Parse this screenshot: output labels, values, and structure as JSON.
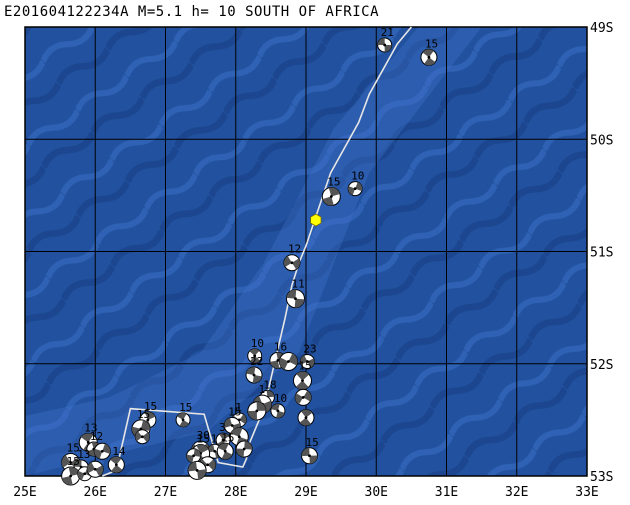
{
  "title": "E201604122234A M=5.1 h= 10 SOUTH OF AFRICA",
  "map": {
    "lon_range": [
      25,
      33
    ],
    "lat_range": [
      -53,
      -49
    ],
    "x_tick_labels": [
      "25E",
      "26E",
      "27E",
      "28E",
      "29E",
      "30E",
      "31E",
      "32E",
      "33E"
    ],
    "y_tick_labels": [
      "49S",
      "50S",
      "51S",
      "52S",
      "53S"
    ],
    "colors": {
      "ocean_dark": "#1f4fa8",
      "ocean_light": "#3f74cc",
      "grid": "#000000",
      "plate_boundary": "#e6e6e6",
      "epicenter": "#ffff00",
      "beachball_dark": "#555555"
    }
  },
  "epicenter": {
    "lon": 29.14,
    "lat": -50.72
  },
  "plate_boundary": [
    [
      30.5,
      -49.0
    ],
    [
      30.3,
      -49.15
    ],
    [
      29.9,
      -49.6
    ],
    [
      29.75,
      -49.85
    ],
    [
      29.35,
      -50.3
    ],
    [
      29.0,
      -50.95
    ],
    [
      28.9,
      -51.1
    ],
    [
      28.8,
      -51.3
    ],
    [
      28.7,
      -51.6
    ],
    [
      28.55,
      -52.0
    ],
    [
      28.4,
      -52.4
    ],
    [
      28.2,
      -52.7
    ],
    [
      28.15,
      -52.85
    ],
    [
      28.1,
      -52.92
    ],
    [
      27.75,
      -52.88
    ],
    [
      27.55,
      -52.45
    ],
    [
      26.5,
      -52.4
    ],
    [
      26.3,
      -52.95
    ],
    [
      26.1,
      -53.0
    ]
  ],
  "events": [
    {
      "lon": 30.12,
      "lat": -49.16,
      "depth": "21"
    },
    {
      "lon": 30.75,
      "lat": -49.27,
      "depth": "15"
    },
    {
      "lon": 29.36,
      "lat": -50.51,
      "depth": "15"
    },
    {
      "lon": 29.7,
      "lat": -50.44,
      "depth": "10"
    },
    {
      "lon": 28.8,
      "lat": -51.1,
      "depth": "12"
    },
    {
      "lon": 28.85,
      "lat": -51.42,
      "depth": "11"
    },
    {
      "lon": 28.27,
      "lat": -51.93,
      "depth": "10"
    },
    {
      "lon": 28.6,
      "lat": -51.97,
      "depth": "16"
    },
    {
      "lon": 28.75,
      "lat": -51.98,
      "depth": ""
    },
    {
      "lon": 29.02,
      "lat": -51.98,
      "depth": "23"
    },
    {
      "lon": 28.26,
      "lat": -52.1,
      "depth": "22"
    },
    {
      "lon": 28.95,
      "lat": -52.15,
      "depth": "15"
    },
    {
      "lon": 28.45,
      "lat": -52.3,
      "depth": "18"
    },
    {
      "lon": 28.96,
      "lat": -52.3,
      "depth": ""
    },
    {
      "lon": 28.38,
      "lat": -52.36,
      "depth": "1"
    },
    {
      "lon": 28.6,
      "lat": -52.42,
      "depth": "10"
    },
    {
      "lon": 29.0,
      "lat": -52.48,
      "depth": ""
    },
    {
      "lon": 28.3,
      "lat": -52.42,
      "depth": ""
    },
    {
      "lon": 28.05,
      "lat": -52.5,
      "depth": "1"
    },
    {
      "lon": 27.95,
      "lat": -52.55,
      "depth": "15"
    },
    {
      "lon": 28.05,
      "lat": -52.65,
      "depth": ""
    },
    {
      "lon": 27.82,
      "lat": -52.68,
      "depth": "3"
    },
    {
      "lon": 28.12,
      "lat": -52.76,
      "depth": ""
    },
    {
      "lon": 27.5,
      "lat": -52.77,
      "depth": "30"
    },
    {
      "lon": 27.7,
      "lat": -52.78,
      "depth": "1"
    },
    {
      "lon": 27.85,
      "lat": -52.78,
      "depth": "15"
    },
    {
      "lon": 27.5,
      "lat": -52.8,
      "depth": "15"
    },
    {
      "lon": 27.4,
      "lat": -52.82,
      "depth": ""
    },
    {
      "lon": 27.6,
      "lat": -52.9,
      "depth": ""
    },
    {
      "lon": 27.45,
      "lat": -52.95,
      "depth": ""
    },
    {
      "lon": 27.25,
      "lat": -52.5,
      "depth": "15"
    },
    {
      "lon": 26.75,
      "lat": -52.5,
      "depth": "15"
    },
    {
      "lon": 26.65,
      "lat": -52.58,
      "depth": "15"
    },
    {
      "lon": 26.67,
      "lat": -52.65,
      "depth": ""
    },
    {
      "lon": 29.05,
      "lat": -52.82,
      "depth": "15"
    },
    {
      "lon": 25.9,
      "lat": -52.7,
      "depth": "13"
    },
    {
      "lon": 25.98,
      "lat": -52.76,
      "depth": "12"
    },
    {
      "lon": 26.1,
      "lat": -52.78,
      "depth": ""
    },
    {
      "lon": 25.65,
      "lat": -52.88,
      "depth": "15"
    },
    {
      "lon": 25.8,
      "lat": -52.92,
      "depth": "13"
    },
    {
      "lon": 26.3,
      "lat": -52.9,
      "depth": "14"
    },
    {
      "lon": 25.65,
      "lat": -53.0,
      "depth": "15"
    },
    {
      "lon": 25.85,
      "lat": -52.98,
      "depth": ""
    },
    {
      "lon": 26.0,
      "lat": -52.94,
      "depth": ""
    }
  ]
}
